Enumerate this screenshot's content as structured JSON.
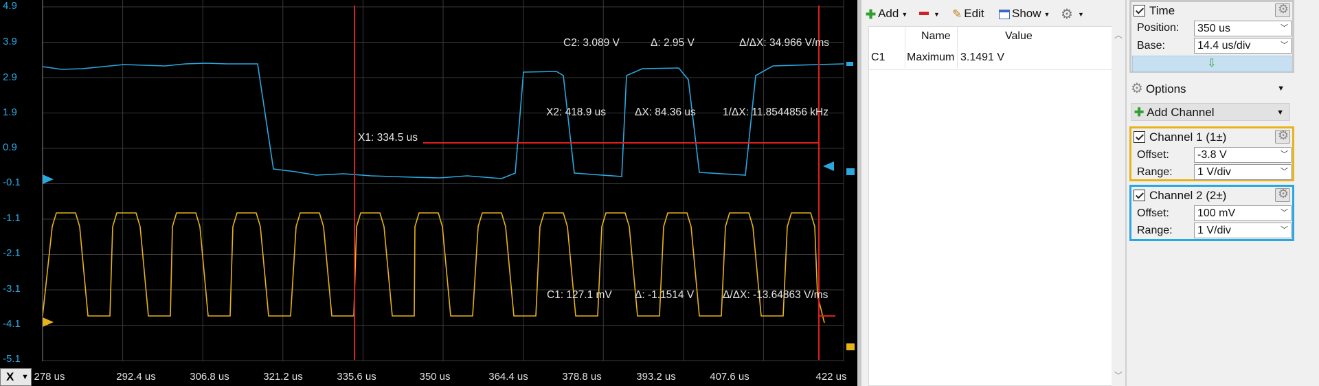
{
  "scope": {
    "y_labels": [
      "4.9",
      "3.9",
      "2.9",
      "1.9",
      "0.9",
      "-0.1",
      "-1.1",
      "-2.1",
      "-3.1",
      "-4.1",
      "-5.1"
    ],
    "x_labels": [
      "278 us",
      "292.4 us",
      "306.8 us",
      "321.2 us",
      "335.6 us",
      "350 us",
      "364.4 us",
      "378.8 us",
      "393.2 us",
      "407.6 us",
      "422 us"
    ],
    "axis_button": "X",
    "colors": {
      "channel1": "#e8b319",
      "channel2": "#29a8e0",
      "cursor": "#e01e1e",
      "grid": "#3a3a3a"
    },
    "measurements": {
      "c2": "C2: 3.089 V",
      "c2_delta": "Δ: 2.95 V",
      "c2_rate": "Δ/ΔX: 34.966 V/ms",
      "x2": "X2: 418.9 us",
      "dx": "ΔX: 84.36 us",
      "inv_dx": "1/ΔX: 11.8544856 kHz",
      "x1": "X1: 334.5 us",
      "c1": "C1: 127.1 mV",
      "c1_delta": "Δ: -1.1514 V",
      "c1_rate": "Δ/ΔX: -13.64863 V/ms"
    }
  },
  "measure_panel": {
    "toolbar": {
      "add": "Add",
      "edit": "Edit",
      "show": "Show"
    },
    "columns": [
      "Name",
      "Value"
    ],
    "rows": [
      {
        "channel": "C1",
        "name": "Maximum",
        "value": "3.1491 V"
      }
    ]
  },
  "side_panel": {
    "time": {
      "title": "Time",
      "position_label": "Position:",
      "position_value": "350 us",
      "base_label": "Base:",
      "base_value": "14.4 us/div"
    },
    "options_label": "Options",
    "add_channel_label": "Add Channel",
    "channel1": {
      "title": "Channel 1 (1±)",
      "offset_label": "Offset:",
      "offset_value": "-3.8 V",
      "range_label": "Range:",
      "range_value": "1 V/div"
    },
    "channel2": {
      "title": "Channel 2 (2±)",
      "offset_label": "Offset:",
      "offset_value": "100 mV",
      "range_label": "Range:",
      "range_value": "1 V/div"
    }
  }
}
